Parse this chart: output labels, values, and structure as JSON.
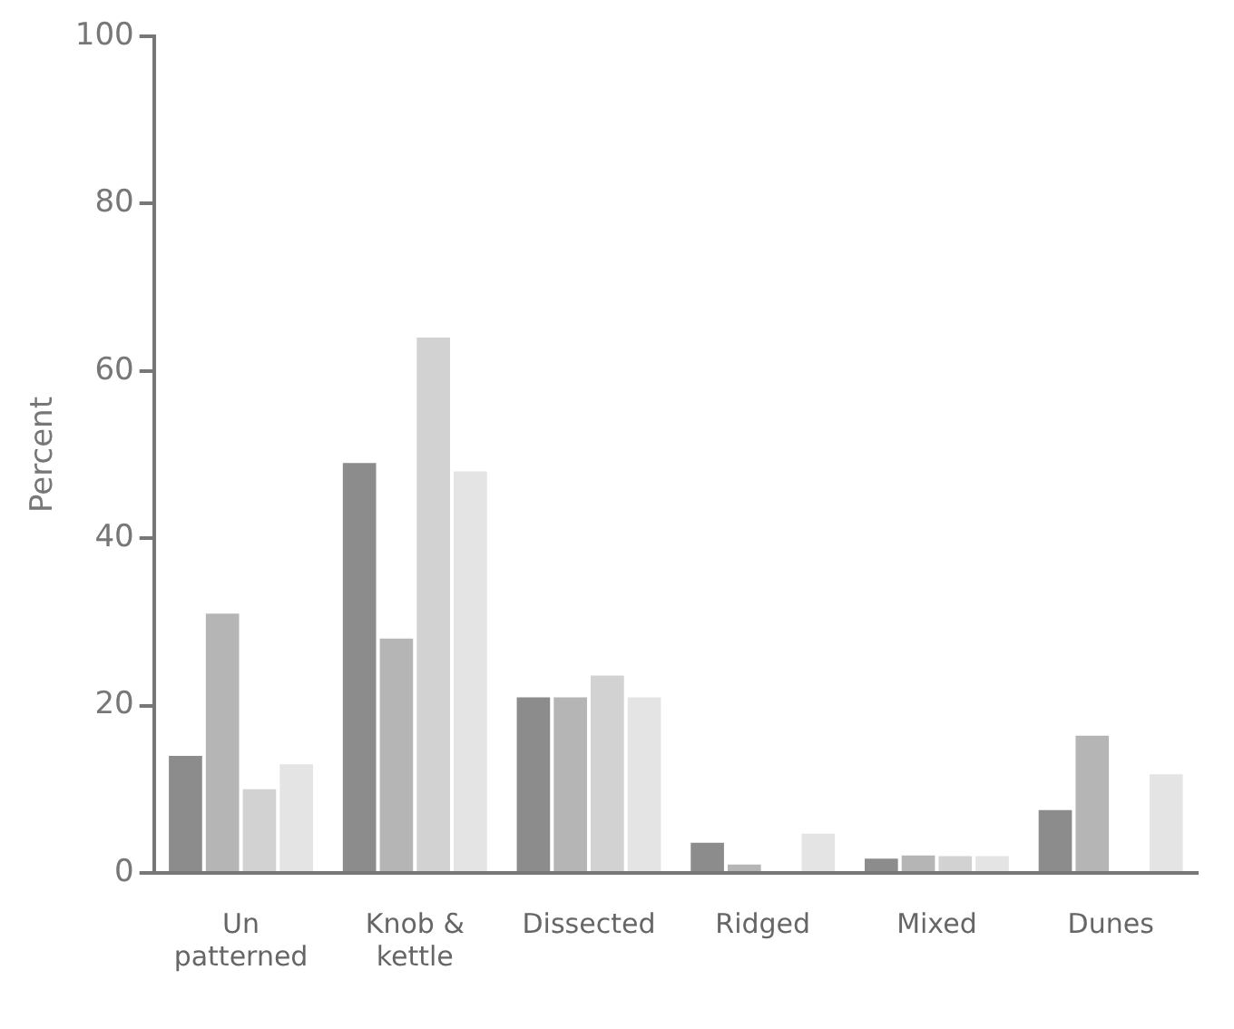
{
  "chart_data": {
    "type": "bar",
    "ylabel": "Percent",
    "categories": [
      "Un\npatterned",
      "Knob &\nkettle",
      "Dissected",
      "Ridged",
      "Mixed",
      "Dunes"
    ],
    "series": [
      {
        "color": "#8c8c8c",
        "values": [
          14,
          49,
          21,
          3.6,
          1.7,
          7.5
        ]
      },
      {
        "color": "#b5b5b5",
        "values": [
          31,
          28,
          21,
          1,
          2.1,
          16.4
        ]
      },
      {
        "color": "#d2d2d2",
        "values": [
          10,
          64,
          23.6,
          0,
          2,
          null
        ]
      },
      {
        "color": "#e4e4e4",
        "values": [
          13,
          48,
          21,
          4.7,
          2,
          11.8
        ]
      }
    ],
    "ylim": [
      0,
      100
    ],
    "yticks": [
      0,
      20,
      40,
      60,
      80,
      100
    ],
    "grid": false,
    "legend": false
  }
}
